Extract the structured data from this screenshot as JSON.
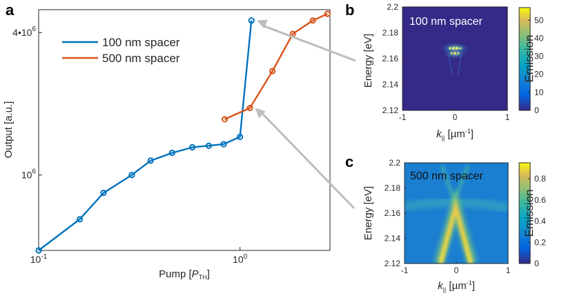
{
  "chart_data": [
    {
      "panel": "a",
      "type": "line",
      "xscale": "log",
      "yscale": "log",
      "xlim": [
        0.1,
        2.8
      ],
      "ylim": [
        480000,
        5000000
      ],
      "xlabel_main": "Pump [",
      "xlabel_var": "P",
      "xlabel_sub": "TH",
      "xlabel_end": "]",
      "ylabel": "Output [a.u.]",
      "xticks": [
        {
          "value": 0.1,
          "base": "10",
          "exp": "-1"
        },
        {
          "value": 1,
          "base": "10",
          "exp": "0"
        }
      ],
      "yticks": [
        {
          "value": 1000000,
          "base": "10",
          "exp": "6"
        },
        {
          "value": 4000000,
          "base": "4•10",
          "exp": "6"
        }
      ],
      "legend_position": "top-left",
      "series": [
        {
          "name": "100 nm spacer",
          "color": "#0072BD",
          "x": [
            0.1,
            0.16,
            0.21,
            0.29,
            0.36,
            0.46,
            0.58,
            0.7,
            0.83,
            1.0,
            1.14
          ],
          "y": [
            480000,
            650000,
            840000,
            1000000,
            1150000,
            1240000,
            1310000,
            1330000,
            1350000,
            1450000,
            4500000
          ]
        },
        {
          "name": "500 nm spacer",
          "color": "#D95319",
          "x": [
            0.84,
            1.12,
            1.45,
            1.83,
            2.3,
            2.72
          ],
          "y": [
            1720000,
            1920000,
            2750000,
            3950000,
            4500000,
            4800000
          ]
        }
      ],
      "arrows": [
        {
          "from_x": 1.14,
          "from_y": 4500000,
          "target_panel": "b"
        },
        {
          "from_x": 1.12,
          "from_y": 1920000,
          "target_panel": "c"
        }
      ]
    },
    {
      "panel": "b",
      "type": "heatmap",
      "annotation": "100 nm spacer",
      "xlim": [
        -1,
        1
      ],
      "ylim": [
        2.12,
        2.2
      ],
      "xticks": [
        "-1",
        "0",
        "1"
      ],
      "yticks": [
        "2.12",
        "2.14",
        "2.16",
        "2.18",
        "2.2"
      ],
      "xlabel_var": "k",
      "xlabel_sub": "||",
      "xlabel_unit": " [µm",
      "xlabel_exp": "-1",
      "xlabel_end": "]",
      "ylabel": "Energy [eV]",
      "colorbar_label": "Emission",
      "colorbar_ticks": [
        "0",
        "10",
        "20",
        "30",
        "40",
        "50"
      ],
      "colorbar_range": [
        0,
        57
      ]
    },
    {
      "panel": "c",
      "type": "heatmap",
      "annotation": "500 nm spacer",
      "xlim": [
        -1,
        1
      ],
      "ylim": [
        2.12,
        2.2
      ],
      "xticks": [
        "-1",
        "0",
        "1"
      ],
      "yticks": [
        "2.12",
        "2.14",
        "2.16",
        "2.18",
        "2.2"
      ],
      "xlabel_var": "k",
      "xlabel_sub": "||",
      "xlabel_unit": " [µm",
      "xlabel_exp": "-1",
      "xlabel_end": "]",
      "ylabel": "Energy [eV]",
      "colorbar_label": "Emission",
      "colorbar_ticks": [
        "0",
        "0.2",
        "0.4",
        "0.6",
        "0.8"
      ],
      "colorbar_range": [
        0,
        0.95
      ]
    }
  ]
}
